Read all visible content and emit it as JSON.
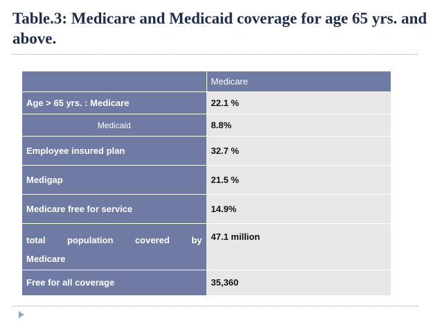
{
  "title": "Table.3: Medicare and Medicaid coverage for age 65 yrs. and above.",
  "table": {
    "column_header": "Medicare",
    "rows": [
      {
        "label": "Age > 65 yrs. : Medicare",
        "value": "22.1 %"
      },
      {
        "label": "Medicaid",
        "value": "8.8%"
      },
      {
        "label": "Employee insured plan",
        "value": "32.7 %"
      },
      {
        "label": "Medigap",
        "value": "21.5 %"
      },
      {
        "label": "Medicare free for service",
        "value": "14.9%"
      },
      {
        "label_line1": "total population covered by",
        "label_line2": "Medicare",
        "value": "47.1 million"
      },
      {
        "label": "Free for all coverage",
        "value": "35,360"
      }
    ]
  },
  "colors": {
    "header_fill": "#6f7ba3",
    "cell_fill": "#e7e7e7",
    "title_color": "#1f2d4a"
  }
}
